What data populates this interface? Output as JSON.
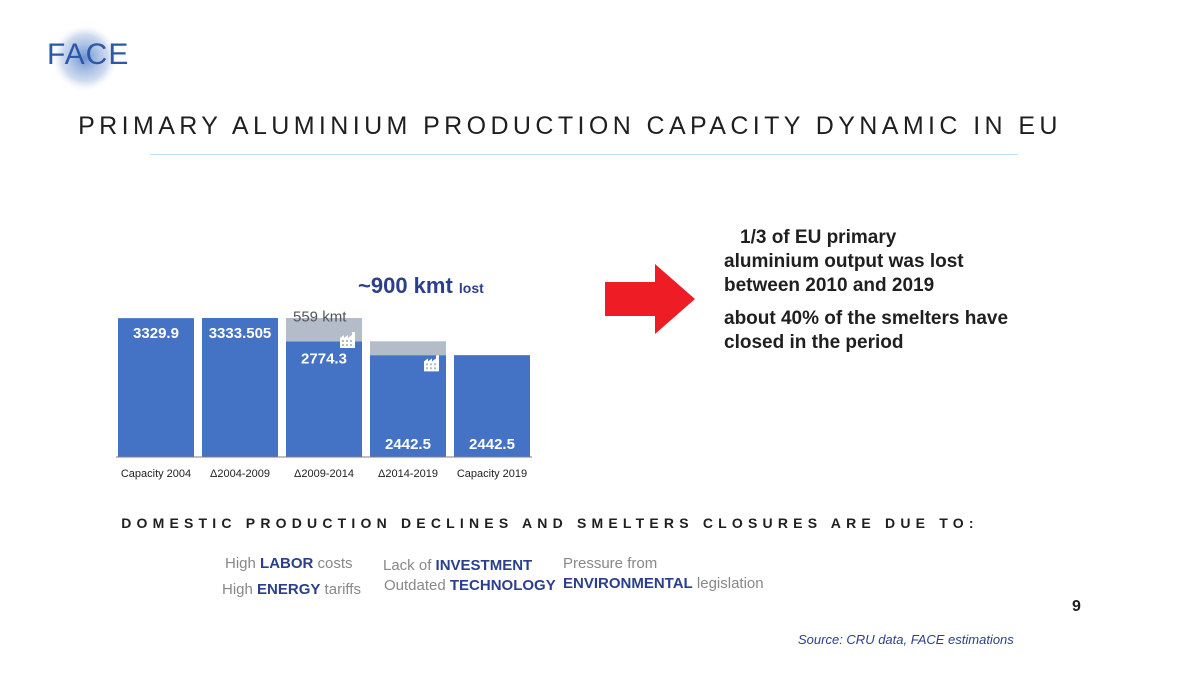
{
  "logo": {
    "text": "FACE"
  },
  "title": "PRIMARY ALUMINIUM PRODUCTION CAPACITY DYNAMIC IN EU",
  "callout": {
    "main": "~900 kmt",
    "suffix": "lost"
  },
  "colors": {
    "capacity": "#4472c4",
    "lost": "#b4bcca",
    "arrow": "#ee1c25",
    "accent": "#2b3f8c"
  },
  "chart_data": {
    "type": "bar",
    "subtype": "waterfall",
    "categories": [
      "Capacity 2004",
      "Δ2004-2009",
      "Δ2009-2014",
      "Δ2014-2019",
      "Capacity 2019"
    ],
    "values": [
      3329.9,
      3333.505,
      2774.3,
      2442.5,
      2442.5
    ],
    "value_labels": [
      "3329.9",
      "3333.505",
      "2774.3",
      "2442.5",
      "2442.5"
    ],
    "lost": [
      0,
      0,
      559,
      331.8,
      0
    ],
    "lost_labels": [
      "",
      "",
      "559 kmt",
      "",
      ""
    ],
    "closure_icons": [
      false,
      false,
      true,
      true,
      false
    ],
    "ylim": [
      0,
      3333.505
    ],
    "title": "",
    "xlabel": "",
    "ylabel": "",
    "grid": false
  },
  "points": {
    "first_lead": "1/3  of EU primary",
    "first_rest": "aluminium output was lost between 2010 and 2019",
    "second": "about 40% of the smelters have closed in the period"
  },
  "subtitle": "DOMESTIC PRODUCTION DECLINES AND SMELTERS CLOSURES ARE DUE TO:",
  "reasons": {
    "labor_pre": "High ",
    "labor_key": "LABOR",
    "labor_post": " costs",
    "energy_pre": "High ",
    "energy_key": "ENERGY",
    "energy_post": " tariffs",
    "invest_pre": "Lack of ",
    "invest_key": "INVESTMENT",
    "tech_pre": "Outdated ",
    "tech_key": "TECHNOLOGY",
    "env_line1": "Pressure from",
    "env_key": "ENVIRONMENTAL",
    "env_post": " legislation"
  },
  "page_number": "9",
  "source": "Source: CRU data, FACE estimations"
}
